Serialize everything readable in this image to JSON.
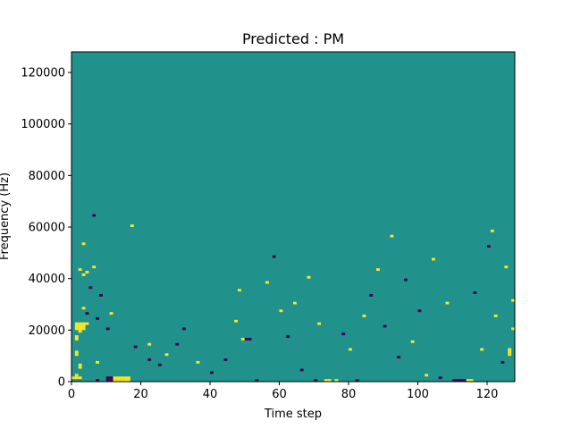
{
  "chart_data": {
    "type": "heatmap",
    "title": "Predicted : PM",
    "xlabel": "Time step",
    "ylabel": "Frequency (Hz)",
    "xlim": [
      0,
      128
    ],
    "ylim": [
      0,
      128000
    ],
    "x_ticks": [
      0,
      20,
      40,
      60,
      80,
      100,
      120
    ],
    "x_tick_labels": [
      "0",
      "20",
      "40",
      "60",
      "80",
      "100",
      "120"
    ],
    "y_ticks": [
      0,
      20000,
      40000,
      60000,
      80000,
      100000,
      120000
    ],
    "y_tick_labels": [
      "0",
      "20000",
      "40000",
      "60000",
      "80000",
      "100000",
      "120000"
    ],
    "grid": false,
    "colormap": "viridis",
    "value_levels": [
      -1,
      0,
      1
    ],
    "level_colors": {
      "-1": "#440154",
      "0": "#21918c",
      "1": "#fde725"
    },
    "background_level": 0,
    "cells": [
      {
        "t": 0,
        "f_bin": 1,
        "value": 1
      },
      {
        "t": 1,
        "f_bin": 1,
        "value": 1
      },
      {
        "t": 1,
        "f_bin": 2,
        "value": 1
      },
      {
        "t": 1,
        "f_bin": 10,
        "value": 1
      },
      {
        "t": 1,
        "f_bin": 11,
        "value": 1
      },
      {
        "t": 1,
        "f_bin": 16,
        "value": 1
      },
      {
        "t": 1,
        "f_bin": 17,
        "value": 1
      },
      {
        "t": 1,
        "f_bin": 20,
        "value": 1
      },
      {
        "t": 1,
        "f_bin": 21,
        "value": 1
      },
      {
        "t": 1,
        "f_bin": 22,
        "value": 1
      },
      {
        "t": 2,
        "f_bin": 1,
        "value": 1
      },
      {
        "t": 2,
        "f_bin": 5,
        "value": 1
      },
      {
        "t": 2,
        "f_bin": 6,
        "value": 1
      },
      {
        "t": 2,
        "f_bin": 19,
        "value": 1
      },
      {
        "t": 2,
        "f_bin": 20,
        "value": 1
      },
      {
        "t": 2,
        "f_bin": 21,
        "value": 1
      },
      {
        "t": 2,
        "f_bin": 22,
        "value": 1
      },
      {
        "t": 2,
        "f_bin": 43,
        "value": 1
      },
      {
        "t": 3,
        "f_bin": 20,
        "value": 1
      },
      {
        "t": 3,
        "f_bin": 21,
        "value": 1
      },
      {
        "t": 3,
        "f_bin": 22,
        "value": 1
      },
      {
        "t": 3,
        "f_bin": 28,
        "value": 1
      },
      {
        "t": 3,
        "f_bin": 41,
        "value": 1
      },
      {
        "t": 3,
        "f_bin": 53,
        "value": 1
      },
      {
        "t": 4,
        "f_bin": 22,
        "value": 1
      },
      {
        "t": 4,
        "f_bin": 42,
        "value": 1
      },
      {
        "t": 4,
        "f_bin": 26,
        "value": -1
      },
      {
        "t": 5,
        "f_bin": 36,
        "value": -1
      },
      {
        "t": 6,
        "f_bin": 44,
        "value": 1
      },
      {
        "t": 6,
        "f_bin": 64,
        "value": -1
      },
      {
        "t": 7,
        "f_bin": 0,
        "value": -1
      },
      {
        "t": 7,
        "f_bin": 7,
        "value": 1
      },
      {
        "t": 7,
        "f_bin": 24,
        "value": -1
      },
      {
        "t": 8,
        "f_bin": 33,
        "value": -1
      },
      {
        "t": 10,
        "f_bin": 0,
        "value": -1
      },
      {
        "t": 10,
        "f_bin": 1,
        "value": -1
      },
      {
        "t": 10,
        "f_bin": 20,
        "value": -1
      },
      {
        "t": 11,
        "f_bin": 0,
        "value": -1
      },
      {
        "t": 11,
        "f_bin": 1,
        "value": -1
      },
      {
        "t": 11,
        "f_bin": 26,
        "value": 1
      },
      {
        "t": 12,
        "f_bin": 0,
        "value": 1
      },
      {
        "t": 12,
        "f_bin": 1,
        "value": 1
      },
      {
        "t": 13,
        "f_bin": 0,
        "value": 1
      },
      {
        "t": 13,
        "f_bin": 1,
        "value": 1
      },
      {
        "t": 14,
        "f_bin": 0,
        "value": 1
      },
      {
        "t": 14,
        "f_bin": 1,
        "value": 1
      },
      {
        "t": 15,
        "f_bin": 0,
        "value": 1
      },
      {
        "t": 15,
        "f_bin": 1,
        "value": 1
      },
      {
        "t": 16,
        "f_bin": 0,
        "value": 1
      },
      {
        "t": 16,
        "f_bin": 1,
        "value": 1
      },
      {
        "t": 17,
        "f_bin": 60,
        "value": 1
      },
      {
        "t": 18,
        "f_bin": 13,
        "value": -1
      },
      {
        "t": 22,
        "f_bin": 8,
        "value": -1
      },
      {
        "t": 22,
        "f_bin": 14,
        "value": 1
      },
      {
        "t": 25,
        "f_bin": 6,
        "value": -1
      },
      {
        "t": 27,
        "f_bin": 10,
        "value": 1
      },
      {
        "t": 30,
        "f_bin": 14,
        "value": -1
      },
      {
        "t": 32,
        "f_bin": 20,
        "value": -1
      },
      {
        "t": 36,
        "f_bin": 7,
        "value": 1
      },
      {
        "t": 40,
        "f_bin": 3,
        "value": -1
      },
      {
        "t": 44,
        "f_bin": 8,
        "value": -1
      },
      {
        "t": 47,
        "f_bin": 23,
        "value": 1
      },
      {
        "t": 48,
        "f_bin": 35,
        "value": 1
      },
      {
        "t": 49,
        "f_bin": 16,
        "value": 1
      },
      {
        "t": 50,
        "f_bin": 16,
        "value": -1
      },
      {
        "t": 51,
        "f_bin": 16,
        "value": -1
      },
      {
        "t": 53,
        "f_bin": 0,
        "value": -1
      },
      {
        "t": 56,
        "f_bin": 38,
        "value": 1
      },
      {
        "t": 58,
        "f_bin": 48,
        "value": -1
      },
      {
        "t": 60,
        "f_bin": 27,
        "value": 1
      },
      {
        "t": 62,
        "f_bin": 17,
        "value": -1
      },
      {
        "t": 64,
        "f_bin": 30,
        "value": 1
      },
      {
        "t": 66,
        "f_bin": 4,
        "value": -1
      },
      {
        "t": 68,
        "f_bin": 40,
        "value": 1
      },
      {
        "t": 70,
        "f_bin": 0,
        "value": -1
      },
      {
        "t": 71,
        "f_bin": 22,
        "value": 1
      },
      {
        "t": 73,
        "f_bin": 0,
        "value": 1
      },
      {
        "t": 74,
        "f_bin": 0,
        "value": 1
      },
      {
        "t": 76,
        "f_bin": 0,
        "value": 1
      },
      {
        "t": 78,
        "f_bin": 18,
        "value": -1
      },
      {
        "t": 80,
        "f_bin": 12,
        "value": 1
      },
      {
        "t": 82,
        "f_bin": 0,
        "value": -1
      },
      {
        "t": 84,
        "f_bin": 25,
        "value": 1
      },
      {
        "t": 86,
        "f_bin": 33,
        "value": -1
      },
      {
        "t": 88,
        "f_bin": 43,
        "value": 1
      },
      {
        "t": 90,
        "f_bin": 21,
        "value": -1
      },
      {
        "t": 92,
        "f_bin": 56,
        "value": 1
      },
      {
        "t": 94,
        "f_bin": 9,
        "value": -1
      },
      {
        "t": 96,
        "f_bin": 39,
        "value": -1
      },
      {
        "t": 98,
        "f_bin": 15,
        "value": 1
      },
      {
        "t": 100,
        "f_bin": 27,
        "value": -1
      },
      {
        "t": 102,
        "f_bin": 2,
        "value": 1
      },
      {
        "t": 104,
        "f_bin": 47,
        "value": 1
      },
      {
        "t": 106,
        "f_bin": 1,
        "value": -1
      },
      {
        "t": 108,
        "f_bin": 30,
        "value": 1
      },
      {
        "t": 110,
        "f_bin": 0,
        "value": -1
      },
      {
        "t": 111,
        "f_bin": 0,
        "value": -1
      },
      {
        "t": 112,
        "f_bin": 0,
        "value": -1
      },
      {
        "t": 113,
        "f_bin": 0,
        "value": -1
      },
      {
        "t": 114,
        "f_bin": 0,
        "value": 1
      },
      {
        "t": 115,
        "f_bin": 0,
        "value": 1
      },
      {
        "t": 116,
        "f_bin": 34,
        "value": -1
      },
      {
        "t": 118,
        "f_bin": 12,
        "value": 1
      },
      {
        "t": 120,
        "f_bin": 52,
        "value": -1
      },
      {
        "t": 121,
        "f_bin": 58,
        "value": 1
      },
      {
        "t": 122,
        "f_bin": 25,
        "value": 1
      },
      {
        "t": 124,
        "f_bin": 7,
        "value": -1
      },
      {
        "t": 125,
        "f_bin": 44,
        "value": 1
      },
      {
        "t": 126,
        "f_bin": 10,
        "value": 1
      },
      {
        "t": 126,
        "f_bin": 11,
        "value": 1
      },
      {
        "t": 126,
        "f_bin": 12,
        "value": 1
      },
      {
        "t": 127,
        "f_bin": 20,
        "value": 1
      },
      {
        "t": 127,
        "f_bin": 31,
        "value": 1
      }
    ]
  }
}
